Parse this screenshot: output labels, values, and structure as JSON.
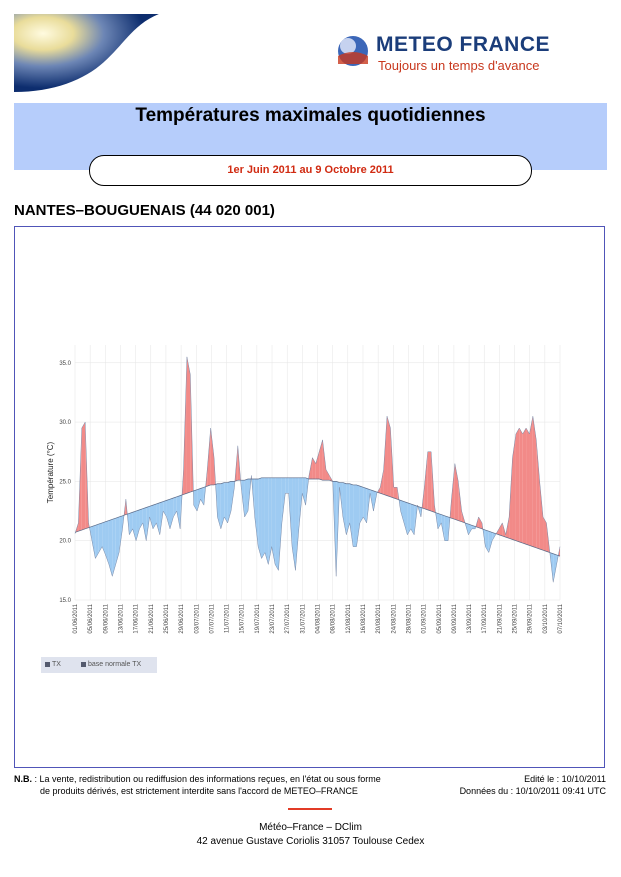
{
  "header": {
    "brand_name": "METEO FRANCE",
    "tagline": "Toujours un temps d'avance",
    "title": "Températures maximales quotidiennes",
    "period": "1er Juin 2011 au 9 Octobre 2011"
  },
  "station": "NANTES–BOUGUENAIS (44 020 001)",
  "colors": {
    "above_normal": "#f28a88",
    "below_normal": "#9ecbf2",
    "band": "#b6cdfb",
    "brand_blue": "#1b3d7a",
    "brand_red": "#c8381e",
    "frame": "#5055b8"
  },
  "chart_data": {
    "type": "area",
    "ylabel": "Température (°C)",
    "ylim": [
      15,
      36.5
    ],
    "yticks": [
      15,
      20,
      25,
      30,
      35
    ],
    "ytick_labels": [
      "15.0",
      "20.0",
      "25.0",
      "30.0",
      "35.0"
    ],
    "x_tick_labels": [
      "01/06/2011",
      "05/06/2011",
      "09/06/2011",
      "13/06/2011",
      "17/06/2011",
      "21/06/2011",
      "25/06/2011",
      "29/06/2011",
      "03/07/2011",
      "07/07/2011",
      "11/07/2011",
      "15/07/2011",
      "19/07/2011",
      "23/07/2011",
      "27/07/2011",
      "31/07/2011",
      "04/08/2011",
      "08/08/2011",
      "12/08/2011",
      "16/08/2011",
      "20/08/2011",
      "24/08/2011",
      "28/08/2011",
      "01/09/2011",
      "05/09/2011",
      "09/09/2011",
      "13/09/2011",
      "17/09/2011",
      "21/09/2011",
      "25/09/2011",
      "29/09/2011",
      "03/10/2011",
      "07/10/2011"
    ],
    "grid": true,
    "legend": "bottom-left",
    "series": [
      {
        "name": "TX",
        "values": [
          20.6,
          21.5,
          29.5,
          30.0,
          21.5,
          20.0,
          18.5,
          19.0,
          19.5,
          18.8,
          18.0,
          17.0,
          18.0,
          19.0,
          21.0,
          23.5,
          20.5,
          21.0,
          20.0,
          21.0,
          21.5,
          20.0,
          22.0,
          21.0,
          21.5,
          20.5,
          22.5,
          22.0,
          21.0,
          22.0,
          22.5,
          21.0,
          26.0,
          35.5,
          34.0,
          23.0,
          22.5,
          23.5,
          23.0,
          26.0,
          29.5,
          27.0,
          22.0,
          21.0,
          22.0,
          21.5,
          22.5,
          24.5,
          28.0,
          24.5,
          22.0,
          22.5,
          25.5,
          22.0,
          19.5,
          18.5,
          19.0,
          18.0,
          19.5,
          18.0,
          17.5,
          21.5,
          24.0,
          24.0,
          19.5,
          17.5,
          21.0,
          24.0,
          23.0,
          25.5,
          27.0,
          26.5,
          27.5,
          28.5,
          26.0,
          25.5,
          25.0,
          17.0,
          24.5,
          22.0,
          20.5,
          21.5,
          19.5,
          19.5,
          21.5,
          22.0,
          21.5,
          24.0,
          22.5,
          24.0,
          24.5,
          26.0,
          30.5,
          29.5,
          24.5,
          24.5,
          22.5,
          21.5,
          20.5,
          21.0,
          20.5,
          23.0,
          22.0,
          24.5,
          27.5,
          27.5,
          23.0,
          21.0,
          21.5,
          20.0,
          20.0,
          23.5,
          26.5,
          25.0,
          22.5,
          21.5,
          20.5,
          21.0,
          21.0,
          22.0,
          21.5,
          19.5,
          19.0,
          20.0,
          20.5,
          21.0,
          21.5,
          20.5,
          22.0,
          27.0,
          29.0,
          29.5,
          29.0,
          29.5,
          29.0,
          30.5,
          28.5,
          25.0,
          22.0,
          21.5,
          19.0,
          16.5,
          18.0,
          19.5
        ]
      },
      {
        "name": "base normale TX",
        "values": [
          20.7,
          20.8,
          20.9,
          21.0,
          21.1,
          21.2,
          21.3,
          21.4,
          21.5,
          21.6,
          21.7,
          21.8,
          21.9,
          22.0,
          22.1,
          22.2,
          22.3,
          22.4,
          22.5,
          22.6,
          22.7,
          22.8,
          22.9,
          23.0,
          23.1,
          23.2,
          23.3,
          23.4,
          23.5,
          23.6,
          23.7,
          23.8,
          23.9,
          24.0,
          24.1,
          24.2,
          24.3,
          24.4,
          24.5,
          24.6,
          24.7,
          24.7,
          24.8,
          24.8,
          24.9,
          24.9,
          25.0,
          25.0,
          25.1,
          25.1,
          25.1,
          25.2,
          25.2,
          25.2,
          25.2,
          25.3,
          25.3,
          25.3,
          25.3,
          25.3,
          25.3,
          25.3,
          25.3,
          25.3,
          25.3,
          25.3,
          25.3,
          25.3,
          25.3,
          25.2,
          25.2,
          25.2,
          25.2,
          25.1,
          25.1,
          25.1,
          25.0,
          25.0,
          24.9,
          24.9,
          24.8,
          24.8,
          24.7,
          24.7,
          24.6,
          24.5,
          24.4,
          24.3,
          24.2,
          24.1,
          24.0,
          23.9,
          23.8,
          23.7,
          23.6,
          23.5,
          23.4,
          23.3,
          23.2,
          23.1,
          23.0,
          22.9,
          22.8,
          22.7,
          22.6,
          22.5,
          22.4,
          22.3,
          22.2,
          22.1,
          22.0,
          21.9,
          21.8,
          21.7,
          21.6,
          21.5,
          21.4,
          21.3,
          21.2,
          21.1,
          21.0,
          20.9,
          20.8,
          20.7,
          20.6,
          20.5,
          20.4,
          20.3,
          20.2,
          20.1,
          20.0,
          19.9,
          19.8,
          19.7,
          19.6,
          19.5,
          19.4,
          19.3,
          19.2,
          19.1,
          19.0,
          18.9,
          18.8,
          18.7
        ]
      }
    ]
  },
  "footer": {
    "nb_label": "N.B.",
    "nb_line1": ": La vente, redistribution ou rediffusion des informations reçues, en l'état ou sous forme",
    "nb_line2": "de produits dérivés, est strictement interdite sans l'accord de METEO–FRANCE",
    "edited": "Edité le : 10/10/2011",
    "data_as_of": "Données du : 10/10/2011 09:41 UTC",
    "org": "Météo–France – DClim",
    "address": "42 avenue Gustave Coriolis   31057 Toulouse Cedex"
  }
}
